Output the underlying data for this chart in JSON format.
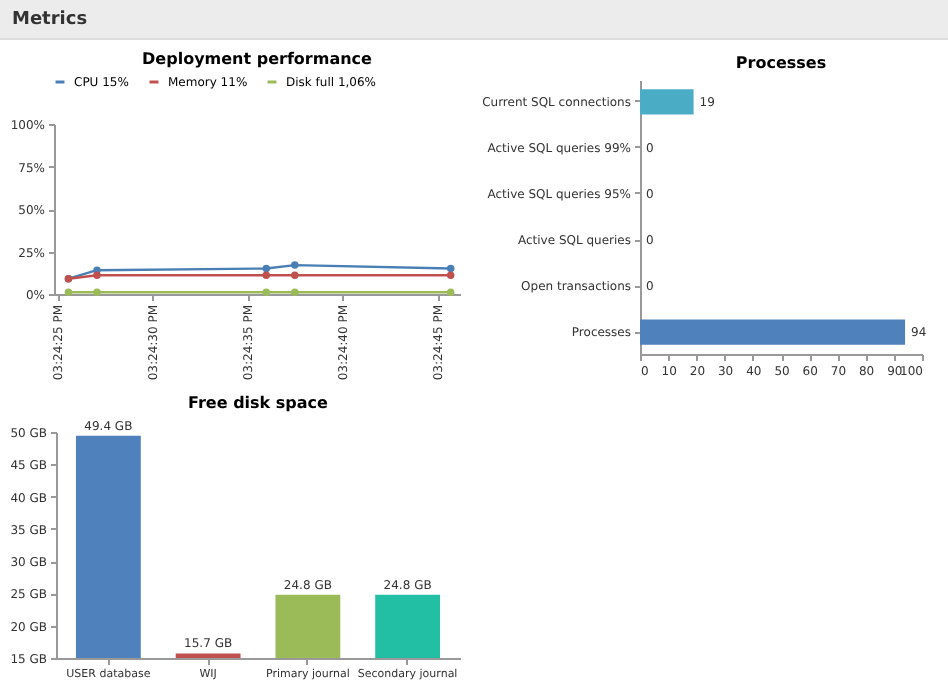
{
  "chart_data": [
    {
      "type": "other",
      "title": "Metrics"
    },
    {
      "type": "line",
      "title": "Deployment performance",
      "x": [
        15.407111,
        15.407528,
        15.41,
        15.410417,
        15.412694
      ],
      "xlim": [
        15.4069,
        15.41283
      ],
      "xticks": [
        {
          "value": 15.406944,
          "label": "03:24:25 PM"
        },
        {
          "value": 15.408333,
          "label": "03:24:30 PM"
        },
        {
          "value": 15.409722,
          "label": "03:24:35 PM"
        },
        {
          "value": 15.411111,
          "label": "03:24:40 PM"
        },
        {
          "value": 15.4125,
          "label": "03:24:45 PM"
        }
      ],
      "ylim": [
        0,
        100
      ],
      "yticks": [
        {
          "value": 0,
          "label": "0%"
        },
        {
          "value": 25,
          "label": "25%"
        },
        {
          "value": 50,
          "label": "50%"
        },
        {
          "value": 75,
          "label": "75%"
        },
        {
          "value": 100,
          "label": "100%"
        }
      ],
      "legend": "top",
      "marker": "circle",
      "line_style": "solid",
      "series": [
        {
          "name": "CPU 15%",
          "color": "#4a7fb5",
          "values": [
            9,
            14,
            15,
            17,
            15
          ]
        },
        {
          "name": "Memory 11%",
          "color": "#c0504d",
          "values": [
            9,
            11,
            11,
            11,
            11
          ]
        },
        {
          "name": "Disk full 1,06%",
          "color": "#9bbb59",
          "values": [
            1,
            1,
            1,
            1,
            1
          ]
        }
      ]
    },
    {
      "type": "bar",
      "orientation": "horizontal",
      "title": "Processes",
      "categories": [
        "Current SQL connections",
        "Active SQL queries 99%",
        "Active SQL queries 95%",
        "Active SQL queries",
        "Open transactions",
        "Processes"
      ],
      "values": [
        19,
        0,
        0,
        0,
        0,
        94
      ],
      "colors": [
        "#4bacc6",
        "#4bacc6",
        "#4bacc6",
        "#4bacc6",
        "#4f81bd",
        "#4f81bd"
      ],
      "xlim": [
        0,
        100
      ],
      "xticks": [
        0,
        10,
        20,
        30,
        40,
        50,
        60,
        70,
        80,
        90,
        100
      ],
      "data_labels": true
    },
    {
      "type": "bar",
      "title": "Free disk space",
      "categories": [
        "USER database",
        "WIJ",
        "Primary journal",
        "Secondary journal"
      ],
      "values": [
        49.4,
        15.7,
        24.8,
        24.8
      ],
      "colors": [
        "#4f81bd",
        "#c0504d",
        "#9bbb59",
        "#23bfa5"
      ],
      "value_labels": [
        "49.4 GB",
        "15.7 GB",
        "24.8 GB",
        "24.8 GB"
      ],
      "ylim": [
        15,
        50
      ],
      "yticks": [
        {
          "value": 15,
          "label": "15 GB"
        },
        {
          "value": 20,
          "label": "20 GB"
        },
        {
          "value": 25,
          "label": "25 GB"
        },
        {
          "value": 30,
          "label": "30 GB"
        },
        {
          "value": 35,
          "label": "35 GB"
        },
        {
          "value": 40,
          "label": "40 GB"
        },
        {
          "value": 45,
          "label": "45 GB"
        },
        {
          "value": 50,
          "label": "50 GB"
        }
      ]
    }
  ]
}
